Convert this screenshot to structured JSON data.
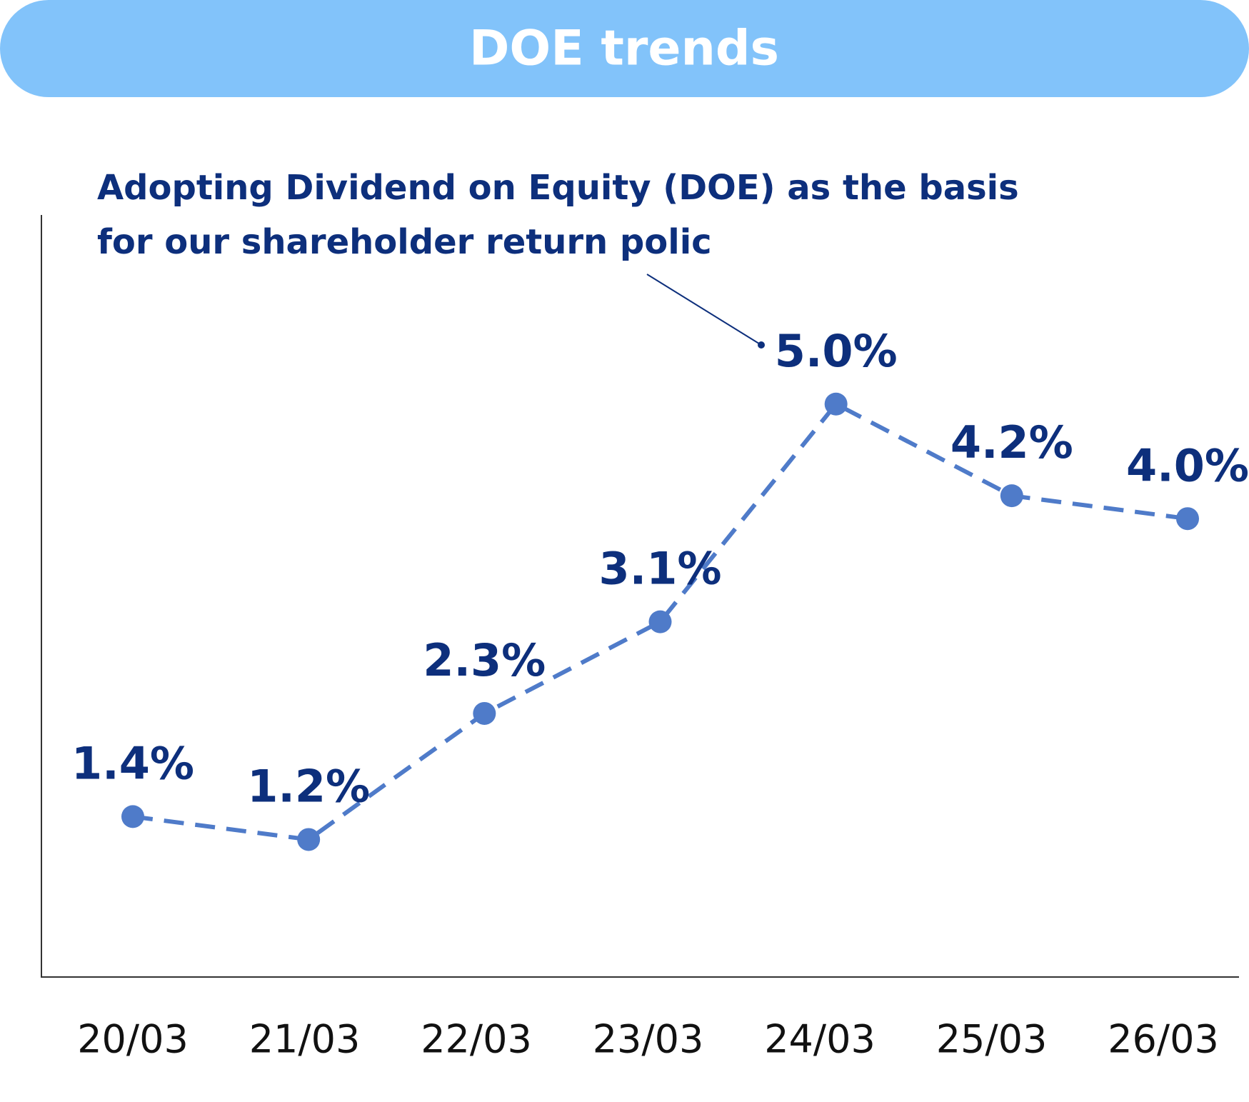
{
  "chart_data": {
    "type": "line",
    "title": "DOE trends",
    "annotation": [
      "Adopting Dividend on Equity (DOE) as the basis",
      "for our shareholder return polic"
    ],
    "categories": [
      "20/03",
      "21/03",
      "22/03",
      "23/03",
      "24/03",
      "25/03",
      "26/03"
    ],
    "series": [
      {
        "name": "DOE",
        "color": "#4f7bc9",
        "values": [
          1.4,
          1.2,
          2.3,
          3.1,
          5.0,
          4.2,
          4.0
        ],
        "value_labels": [
          "1.4%",
          "1.2%",
          "2.3%",
          "3.1%",
          "5.0%",
          "4.2%",
          "4.0%"
        ]
      }
    ],
    "ylim": [
      0,
      6.65
    ]
  }
}
